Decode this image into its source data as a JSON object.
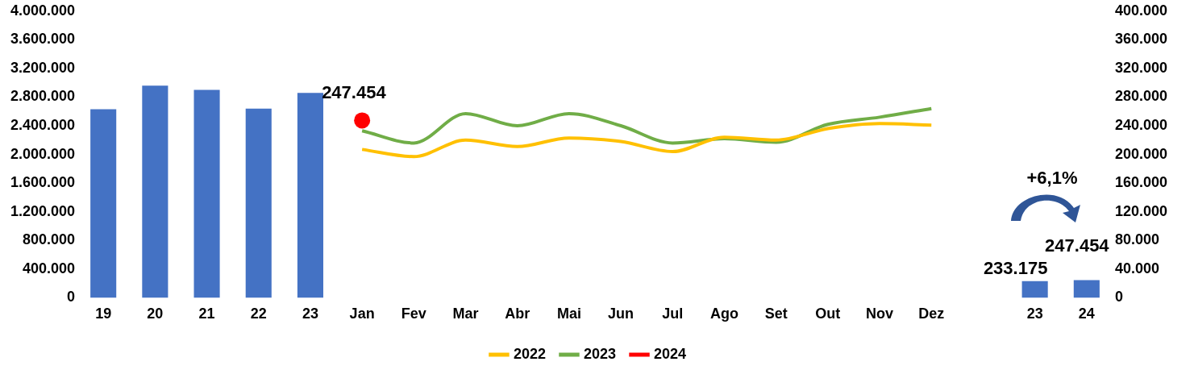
{
  "chart_data": {
    "type": "bar",
    "categories": [
      "19",
      "20",
      "21",
      "22",
      "23",
      "Jan",
      "Fev",
      "Mar",
      "Abr",
      "Mai",
      "Jun",
      "Jul",
      "Ago",
      "Set",
      "Out",
      "Nov",
      "Dez",
      null,
      "23",
      "24"
    ],
    "series": [
      {
        "color": "#4472c4",
        "values": [
          2630000,
          2960000,
          2900000,
          2640000,
          2860000,
          null,
          null,
          null,
          null,
          null,
          null,
          null,
          null,
          null,
          null,
          null,
          null,
          null,
          null,
          null
        ]
      },
      {
        "color": "#4472c4",
        "values": [
          null,
          null,
          null,
          null,
          null,
          null,
          null,
          null,
          null,
          null,
          null,
          null,
          null,
          null,
          null,
          null,
          null,
          null,
          233175,
          247454
        ],
        "value_labels": [
          null,
          null,
          null,
          null,
          null,
          null,
          null,
          null,
          null,
          null,
          null,
          null,
          null,
          null,
          null,
          null,
          null,
          null,
          "233.175",
          "247.454"
        ]
      },
      {
        "type": "line",
        "axis": "y2",
        "name": "2022",
        "color": "#ffc000",
        "marker": "none",
        "values": [
          null,
          null,
          null,
          null,
          null,
          207000,
          197000,
          220000,
          211000,
          223000,
          218000,
          204000,
          224000,
          220000,
          236000,
          243000,
          241000,
          null,
          null,
          null
        ]
      },
      {
        "type": "line",
        "axis": "y2",
        "name": "2023",
        "color": "#70ad47",
        "marker": "none",
        "values": [
          null,
          null,
          null,
          null,
          null,
          233000,
          216000,
          257000,
          240000,
          257000,
          240000,
          216000,
          222000,
          217000,
          242000,
          252000,
          264000,
          null,
          null,
          null
        ]
      },
      {
        "type": "line",
        "axis": "y2",
        "name": "2024",
        "color": "#ff0000",
        "marker": "circle",
        "values": [
          null,
          null,
          null,
          null,
          null,
          247454,
          null,
          null,
          null,
          null,
          null,
          null,
          null,
          null,
          null,
          null,
          null,
          null,
          null,
          null
        ],
        "value_labels": [
          null,
          null,
          null,
          null,
          null,
          "247.454",
          null,
          null,
          null,
          null,
          null,
          null,
          null,
          null,
          null,
          null,
          null,
          null,
          null,
          null
        ]
      }
    ],
    "ylim": [
      0,
      4000000
    ],
    "yticks": [
      {
        "value": 0,
        "label": "0"
      },
      {
        "value": 400000,
        "label": "400.000"
      },
      {
        "value": 800000,
        "label": "800.000"
      },
      {
        "value": 1200000,
        "label": "1.200.000"
      },
      {
        "value": 1600000,
        "label": "1.600.000"
      },
      {
        "value": 2000000,
        "label": "2.000.000"
      },
      {
        "value": 2400000,
        "label": "2.400.000"
      },
      {
        "value": 2800000,
        "label": "2.800.000"
      },
      {
        "value": 3200000,
        "label": "3.200.000"
      },
      {
        "value": 3600000,
        "label": "3.600.000"
      },
      {
        "value": 4000000,
        "label": "4.000.000"
      }
    ],
    "y2lim": [
      0,
      400000
    ],
    "y2ticks": [
      {
        "value": 0,
        "label": "0"
      },
      {
        "value": 40000,
        "label": "40.000"
      },
      {
        "value": 80000,
        "label": "80.000"
      },
      {
        "value": 120000,
        "label": "120.000"
      },
      {
        "value": 160000,
        "label": "160.000"
      },
      {
        "value": 200000,
        "label": "200.000"
      },
      {
        "value": 240000,
        "label": "240.000"
      },
      {
        "value": 280000,
        "label": "280.000"
      },
      {
        "value": 320000,
        "label": "320.000"
      },
      {
        "value": 360000,
        "label": "360.000"
      },
      {
        "value": 400000,
        "label": "400.000"
      }
    ],
    "annotations": [
      "+6,1%"
    ],
    "grid": false,
    "legend": "bottom"
  }
}
